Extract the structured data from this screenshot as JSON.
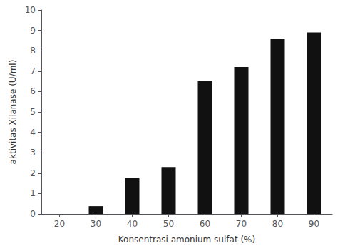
{
  "chart_data": {
    "type": "bar",
    "x": [
      20,
      30,
      40,
      50,
      60,
      70,
      80,
      90
    ],
    "values": [
      0.0,
      0.38,
      1.78,
      2.3,
      6.5,
      7.2,
      8.6,
      8.9
    ],
    "color": "#111111",
    "xlabel": "Konsentrasi amonium sulfat (%)",
    "ylabel": "aktivitas Xilanase (U/ml)",
    "xlim": [
      15,
      95
    ],
    "xticks": [
      20,
      30,
      40,
      50,
      60,
      70,
      80,
      90
    ],
    "ylim": [
      0,
      10
    ],
    "yticks": [
      0,
      1,
      2,
      3,
      4,
      5,
      6,
      7,
      8,
      9,
      10
    ],
    "grid": false
  }
}
